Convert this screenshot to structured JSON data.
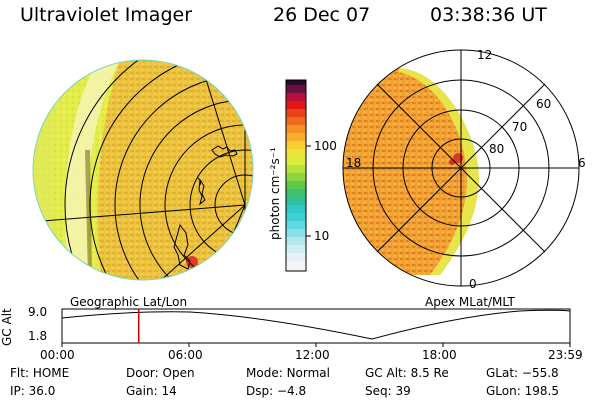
{
  "header": {
    "title": "Ultraviolet Imager",
    "date": "26 Dec 07",
    "time": "03:38:36 UT"
  },
  "left_panel": {
    "caption": "Geographic Lat/Lon"
  },
  "right_panel": {
    "caption": "Apex MLat/MLT",
    "mlt_labels": {
      "top": "12",
      "left": "18",
      "right": "6",
      "bottom": "0"
    },
    "lat_labels": [
      "60",
      "70",
      "80"
    ]
  },
  "colorbar": {
    "unit_label": "photon cm⁻²s⁻¹",
    "ticks": [
      "100",
      "10"
    ]
  },
  "orbit_plot": {
    "ylabel": "GC Alt",
    "yticks": [
      "9.0",
      "1.8"
    ],
    "xticks": [
      "00:00",
      "06:00",
      "12:00",
      "18:00",
      "23:59"
    ],
    "current_time_fraction": 0.151
  },
  "status": {
    "row1": [
      {
        "k": "Flt:",
        "v": "HOME"
      },
      {
        "k": "Door:",
        "v": "Open"
      },
      {
        "k": "Mode:",
        "v": "Normal"
      },
      {
        "k": "GC Alt:",
        "v": "8.5 Re"
      },
      {
        "k": "GLat:",
        "v": "−55.8"
      }
    ],
    "row2": [
      {
        "k": "IP:",
        "v": "36.0"
      },
      {
        "k": "Gain:",
        "v": "14"
      },
      {
        "k": "Dsp:",
        "v": "−4.8"
      },
      {
        "k": "Seq:",
        "v": "39"
      },
      {
        "k": "GLon:",
        "v": "198.5"
      }
    ]
  },
  "colors": {
    "limb_bright": "#f4f2a8",
    "disk_yellow": "#e6ee52",
    "aurora_orange": "#f0a030",
    "aurora_red": "#d82828",
    "marker_red": "#cc0000"
  }
}
